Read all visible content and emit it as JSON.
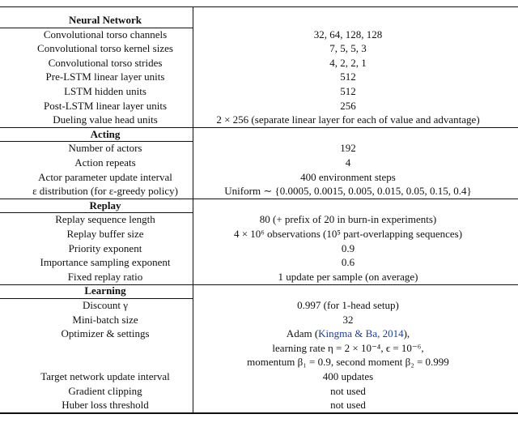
{
  "table": {
    "sections": [
      {
        "title": "Neural Network",
        "rows": [
          {
            "param": "Convolutional torso channels",
            "value": "32, 64, 128, 128"
          },
          {
            "param": "Convolutional torso kernel sizes",
            "value": "7, 5, 5, 3"
          },
          {
            "param": "Convolutional torso strides",
            "value": "4, 2, 2, 1"
          },
          {
            "param": "Pre-LSTM linear layer units",
            "value": "512"
          },
          {
            "param": "LSTM hidden units",
            "value": "512"
          },
          {
            "param": "Post-LSTM linear layer units",
            "value": "256"
          },
          {
            "param": "Dueling value head units",
            "value": "2 × 256 (separate linear layer for each of value and advantage)"
          }
        ]
      },
      {
        "title": "Acting",
        "rows": [
          {
            "param": "Number of actors",
            "value": "192"
          },
          {
            "param": "Action repeats",
            "value": "4"
          },
          {
            "param": "Actor parameter update interval",
            "value": "400 environment steps"
          },
          {
            "param": "ε distribution (for ε-greedy policy)",
            "value": "Uniform ∼ {0.0005, 0.0015, 0.005, 0.015, 0.05, 0.15, 0.4}"
          }
        ]
      },
      {
        "title": "Replay",
        "rows": [
          {
            "param": "Replay sequence length",
            "value": "80 (+ prefix of 20 in burn-in experiments)"
          },
          {
            "param": "Replay buffer size",
            "value": "4 × 10⁶ observations (10⁵ part-overlapping sequences)"
          },
          {
            "param": "Priority exponent",
            "value": "0.9"
          },
          {
            "param": "Importance sampling exponent",
            "value": "0.6"
          },
          {
            "param": "Fixed replay ratio",
            "value": "1 update per sample (on average)"
          }
        ]
      },
      {
        "title": "Learning",
        "rows": [
          {
            "param": "Discount γ",
            "value": "0.997 (for 1-head setup)"
          },
          {
            "param": "Mini-batch size",
            "value": "32"
          },
          {
            "param": "Optimizer & settings",
            "value_lines": [
              [
                "Adam (",
                "Kingma & Ba, 2014",
                "),"
              ],
              [
                "learning rate η = 2 × 10⁻⁴, ϵ = 10⁻⁶,"
              ],
              [
                "momentum β₁ = 0.9, second moment β₂ = 0.999"
              ]
            ]
          },
          {
            "param": "Target network update interval",
            "value": "400 updates"
          },
          {
            "param": "Gradient clipping",
            "value": "not used"
          },
          {
            "param": "Huber loss threshold",
            "value": "not used"
          }
        ]
      }
    ]
  }
}
